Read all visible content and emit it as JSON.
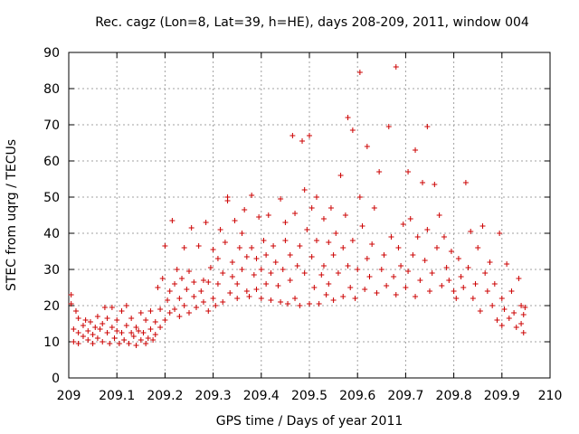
{
  "chart_data": {
    "type": "scatter",
    "title": "Rec. cagz (Lon=8, Lat=39, h=HE), days 208-209, 2011, window 004",
    "xlabel": "GPS time / Days of year 2011",
    "ylabel": "STEC from uqrg / TECUs",
    "xlim": [
      209,
      210
    ],
    "ylim": [
      0,
      90
    ],
    "xticks": [
      209,
      209.1,
      209.2,
      209.3,
      209.4,
      209.5,
      209.6,
      209.7,
      209.8,
      209.9,
      210
    ],
    "xtick_labels": [
      "209",
      "209.1",
      "209.2",
      "209.3",
      "209.4",
      "209.5",
      "209.6",
      "209.7",
      "209.8",
      "209.9",
      "210"
    ],
    "yticks": [
      0,
      10,
      20,
      30,
      40,
      50,
      60,
      70,
      80,
      90
    ],
    "ytick_labels": [
      "0",
      "10",
      "20",
      "30",
      "40",
      "50",
      "60",
      "70",
      "80",
      "90"
    ],
    "grid": true,
    "marker": "plus",
    "color": "#cc0000",
    "series": [
      {
        "name": "STEC",
        "points": [
          [
            209.005,
            23.0
          ],
          [
            209.005,
            20.5
          ],
          [
            209.01,
            13.5
          ],
          [
            209.01,
            10.0
          ],
          [
            209.015,
            18.5
          ],
          [
            209.02,
            16.5
          ],
          [
            209.02,
            12.5
          ],
          [
            209.02,
            9.5
          ],
          [
            209.03,
            14.5
          ],
          [
            209.03,
            11.5
          ],
          [
            209.035,
            16.0
          ],
          [
            209.04,
            13.0
          ],
          [
            209.04,
            10.5
          ],
          [
            209.045,
            15.5
          ],
          [
            209.05,
            12.0
          ],
          [
            209.05,
            9.5
          ],
          [
            209.055,
            14.0
          ],
          [
            209.06,
            17.0
          ],
          [
            209.06,
            11.0
          ],
          [
            209.065,
            13.5
          ],
          [
            209.07,
            10.0
          ],
          [
            209.07,
            15.0
          ],
          [
            209.075,
            19.5
          ],
          [
            209.08,
            12.5
          ],
          [
            209.08,
            16.5
          ],
          [
            209.085,
            9.5
          ],
          [
            209.09,
            14.0
          ],
          [
            209.09,
            19.5
          ],
          [
            209.095,
            11.0
          ],
          [
            209.1,
            13.0
          ],
          [
            209.1,
            16.0
          ],
          [
            209.105,
            9.5
          ],
          [
            209.11,
            12.5
          ],
          [
            209.11,
            18.5
          ],
          [
            209.115,
            10.5
          ],
          [
            209.12,
            14.5
          ],
          [
            209.12,
            20.0
          ],
          [
            209.125,
            9.5
          ],
          [
            209.13,
            12.5
          ],
          [
            209.13,
            16.5
          ],
          [
            209.135,
            11.5
          ],
          [
            209.14,
            9.0
          ],
          [
            209.14,
            14.0
          ],
          [
            209.145,
            13.0
          ],
          [
            209.15,
            10.5
          ],
          [
            209.15,
            18.0
          ],
          [
            209.155,
            12.5
          ],
          [
            209.16,
            16.0
          ],
          [
            209.16,
            9.5
          ],
          [
            209.165,
            11.0
          ],
          [
            209.17,
            13.5
          ],
          [
            209.17,
            18.5
          ],
          [
            209.175,
            10.5
          ],
          [
            209.18,
            15.5
          ],
          [
            209.18,
            12.0
          ],
          [
            209.185,
            25.0
          ],
          [
            209.19,
            14.0
          ],
          [
            209.19,
            19.0
          ],
          [
            209.195,
            27.5
          ],
          [
            209.2,
            16.0
          ],
          [
            209.2,
            36.5
          ],
          [
            209.205,
            21.5
          ],
          [
            209.21,
            18.0
          ],
          [
            209.21,
            24.0
          ],
          [
            209.215,
            43.5
          ],
          [
            209.22,
            19.0
          ],
          [
            209.22,
            26.0
          ],
          [
            209.225,
            30.0
          ],
          [
            209.23,
            17.0
          ],
          [
            209.23,
            22.0
          ],
          [
            209.235,
            27.5
          ],
          [
            209.24,
            36.0
          ],
          [
            209.24,
            20.0
          ],
          [
            209.245,
            24.5
          ],
          [
            209.25,
            18.0
          ],
          [
            209.25,
            29.5
          ],
          [
            209.255,
            41.5
          ],
          [
            209.26,
            22.5
          ],
          [
            209.26,
            26.5
          ],
          [
            209.265,
            19.5
          ],
          [
            209.27,
            36.5
          ],
          [
            209.275,
            24.0
          ],
          [
            209.28,
            21.0
          ],
          [
            209.28,
            27.0
          ],
          [
            209.285,
            43.0
          ],
          [
            209.29,
            18.5
          ],
          [
            209.29,
            26.5
          ],
          [
            209.295,
            30.5
          ],
          [
            209.3,
            22.0
          ],
          [
            209.3,
            35.5
          ],
          [
            209.305,
            20.0
          ],
          [
            209.31,
            26.0
          ],
          [
            209.31,
            33.0
          ],
          [
            209.315,
            41.0
          ],
          [
            209.32,
            21.0
          ],
          [
            209.32,
            29.0
          ],
          [
            209.325,
            37.5
          ],
          [
            209.33,
            49.0
          ],
          [
            209.33,
            50.0
          ],
          [
            209.335,
            23.5
          ],
          [
            209.34,
            28.0
          ],
          [
            209.34,
            32.0
          ],
          [
            209.345,
            43.5
          ],
          [
            209.35,
            22.0
          ],
          [
            209.35,
            26.0
          ],
          [
            209.355,
            36.0
          ],
          [
            209.36,
            40.0
          ],
          [
            209.36,
            30.0
          ],
          [
            209.365,
            46.5
          ],
          [
            209.37,
            24.0
          ],
          [
            209.37,
            33.5
          ],
          [
            209.375,
            22.5
          ],
          [
            209.38,
            50.5
          ],
          [
            209.38,
            36.0
          ],
          [
            209.385,
            28.5
          ],
          [
            209.39,
            24.5
          ],
          [
            209.39,
            33.0
          ],
          [
            209.395,
            44.5
          ],
          [
            209.4,
            22.0
          ],
          [
            209.4,
            30.0
          ],
          [
            209.405,
            38.0
          ],
          [
            209.41,
            26.0
          ],
          [
            209.41,
            34.0
          ],
          [
            209.415,
            45.0
          ],
          [
            209.42,
            21.5
          ],
          [
            209.42,
            29.0
          ],
          [
            209.425,
            36.5
          ],
          [
            209.43,
            32.0
          ],
          [
            209.435,
            25.5
          ],
          [
            209.44,
            49.5
          ],
          [
            209.44,
            21.0
          ],
          [
            209.445,
            30.0
          ],
          [
            209.45,
            38.0
          ],
          [
            209.45,
            43.0
          ],
          [
            209.455,
            20.5
          ],
          [
            209.46,
            27.0
          ],
          [
            209.46,
            34.0
          ],
          [
            209.465,
            67.0
          ],
          [
            209.47,
            45.5
          ],
          [
            209.47,
            22.0
          ],
          [
            209.475,
            31.0
          ],
          [
            209.48,
            36.5
          ],
          [
            209.48,
            20.0
          ],
          [
            209.485,
            65.5
          ],
          [
            209.49,
            52.0
          ],
          [
            209.49,
            29.0
          ],
          [
            209.495,
            41.0
          ],
          [
            209.5,
            20.5
          ],
          [
            209.5,
            67.0
          ],
          [
            209.505,
            47.0
          ],
          [
            209.505,
            33.5
          ],
          [
            209.51,
            25.0
          ],
          [
            209.515,
            50.0
          ],
          [
            209.515,
            38.0
          ],
          [
            209.52,
            20.5
          ],
          [
            209.525,
            28.5
          ],
          [
            209.53,
            44.0
          ],
          [
            209.53,
            31.0
          ],
          [
            209.535,
            23.0
          ],
          [
            209.54,
            37.5
          ],
          [
            209.54,
            26.0
          ],
          [
            209.545,
            47.0
          ],
          [
            209.55,
            21.5
          ],
          [
            209.55,
            34.0
          ],
          [
            209.555,
            40.0
          ],
          [
            209.56,
            29.0
          ],
          [
            209.565,
            56.0
          ],
          [
            209.57,
            22.5
          ],
          [
            209.57,
            36.0
          ],
          [
            209.575,
            45.0
          ],
          [
            209.58,
            72.0
          ],
          [
            209.58,
            31.0
          ],
          [
            209.585,
            25.0
          ],
          [
            209.59,
            68.5
          ],
          [
            209.59,
            38.0
          ],
          [
            209.595,
            22.0
          ],
          [
            209.6,
            30.0
          ],
          [
            209.605,
            84.5
          ],
          [
            209.605,
            50.0
          ],
          [
            209.61,
            42.0
          ],
          [
            209.615,
            24.5
          ],
          [
            209.62,
            64.0
          ],
          [
            209.62,
            33.0
          ],
          [
            209.625,
            28.0
          ],
          [
            209.63,
            37.0
          ],
          [
            209.635,
            47.0
          ],
          [
            209.64,
            23.5
          ],
          [
            209.645,
            57.0
          ],
          [
            209.65,
            30.0
          ],
          [
            209.655,
            34.0
          ],
          [
            209.66,
            25.5
          ],
          [
            209.665,
            69.5
          ],
          [
            209.67,
            39.0
          ],
          [
            209.675,
            28.0
          ],
          [
            209.68,
            86.0
          ],
          [
            209.68,
            23.0
          ],
          [
            209.685,
            36.0
          ],
          [
            209.69,
            31.0
          ],
          [
            209.695,
            42.5
          ],
          [
            209.7,
            25.0
          ],
          [
            209.705,
            57.0
          ],
          [
            209.705,
            29.5
          ],
          [
            209.71,
            44.0
          ],
          [
            209.715,
            34.0
          ],
          [
            209.72,
            63.0
          ],
          [
            209.72,
            22.5
          ],
          [
            209.725,
            39.0
          ],
          [
            209.73,
            27.0
          ],
          [
            209.735,
            54.0
          ],
          [
            209.74,
            32.5
          ],
          [
            209.745,
            69.5
          ],
          [
            209.745,
            41.0
          ],
          [
            209.75,
            24.0
          ],
          [
            209.755,
            29.0
          ],
          [
            209.76,
            53.5
          ],
          [
            209.765,
            36.0
          ],
          [
            209.77,
            45.0
          ],
          [
            209.775,
            25.5
          ],
          [
            209.78,
            39.0
          ],
          [
            209.785,
            30.5
          ],
          [
            209.79,
            27.0
          ],
          [
            209.795,
            35.0
          ],
          [
            209.8,
            24.0
          ],
          [
            209.805,
            22.0
          ],
          [
            209.81,
            33.0
          ],
          [
            209.815,
            28.0
          ],
          [
            209.82,
            25.0
          ],
          [
            209.825,
            54.0
          ],
          [
            209.83,
            30.5
          ],
          [
            209.835,
            40.5
          ],
          [
            209.84,
            22.0
          ],
          [
            209.845,
            26.0
          ],
          [
            209.85,
            36.0
          ],
          [
            209.855,
            18.5
          ],
          [
            209.86,
            42.0
          ],
          [
            209.865,
            29.0
          ],
          [
            209.87,
            24.0
          ],
          [
            209.875,
            32.0
          ],
          [
            209.88,
            20.0
          ],
          [
            209.885,
            26.0
          ],
          [
            209.89,
            16.0
          ],
          [
            209.895,
            40.0
          ],
          [
            209.9,
            22.0
          ],
          [
            209.9,
            14.5
          ],
          [
            209.905,
            19.0
          ],
          [
            209.91,
            31.5
          ],
          [
            209.915,
            16.5
          ],
          [
            209.92,
            24.0
          ],
          [
            209.925,
            18.0
          ],
          [
            209.93,
            14.0
          ],
          [
            209.935,
            27.5
          ],
          [
            209.94,
            20.0
          ],
          [
            209.94,
            15.0
          ],
          [
            209.945,
            12.5
          ],
          [
            209.945,
            17.5
          ],
          [
            209.948,
            19.5
          ]
        ]
      }
    ]
  }
}
